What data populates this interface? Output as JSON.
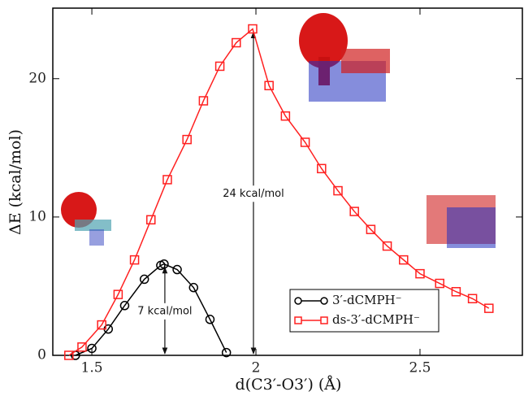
{
  "chart_data": {
    "type": "line",
    "x_label": "d(C3′-O3′) (Å)",
    "y_label": "ΔE (kcal/mol)",
    "xlim": [
      1.381,
      2.812
    ],
    "ylim": [
      0,
      25.1
    ],
    "xticks": [
      1.5,
      2,
      2.5
    ],
    "yticks": [
      0,
      10,
      20
    ],
    "series": [
      {
        "name": "3′-dCMPH⁻",
        "color": "#000000",
        "marker": "circle",
        "x": [
          1.45,
          1.5,
          1.55,
          1.6,
          1.66,
          1.71,
          1.72,
          1.76,
          1.81,
          1.86,
          1.91
        ],
        "values": [
          0,
          0.5,
          1.9,
          3.6,
          5.5,
          6.5,
          6.6,
          6.2,
          4.9,
          2.6,
          0.2
        ]
      },
      {
        "name": "ds-3′-dCMPH⁻",
        "color": "#ff2020",
        "marker": "square",
        "x": [
          1.43,
          1.47,
          1.53,
          1.58,
          1.63,
          1.68,
          1.73,
          1.79,
          1.84,
          1.89,
          1.94,
          1.99,
          2.04,
          2.09,
          2.15,
          2.2,
          2.25,
          2.3,
          2.35,
          2.4,
          2.45,
          2.5,
          2.56,
          2.61,
          2.66,
          2.71
        ],
        "values": [
          0,
          0.6,
          2.2,
          4.4,
          6.9,
          9.8,
          12.7,
          15.6,
          18.4,
          20.9,
          22.6,
          23.6,
          19.5,
          17.3,
          15.4,
          13.5,
          11.9,
          10.4,
          9.1,
          7.9,
          6.9,
          5.9,
          5.2,
          4.6,
          4.1,
          3.4
        ]
      }
    ],
    "annotations": [
      "24 kcal/mol",
      "7 kcal/mol"
    ]
  }
}
